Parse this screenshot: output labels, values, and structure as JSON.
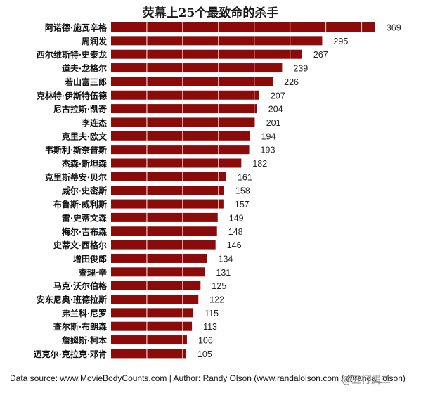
{
  "chart_data": {
    "type": "bar",
    "orientation": "horizontal",
    "title": "荧幕上25个最致命的杀手",
    "xlabel": "",
    "ylabel": "",
    "xlim": [
      0,
      380
    ],
    "grid": true,
    "bar_color": "#8b0a0a",
    "categories": [
      "阿诺德·施瓦辛格",
      "周润发",
      "西尔维斯特·史泰龙",
      "道夫·龙格尔",
      "若山富三郎",
      "克林特·伊斯特伍德",
      "尼古拉斯·凯奇",
      "李连杰",
      "克里夫·欧文",
      "韦斯利·斯奈普斯",
      "杰森·斯坦森",
      "克里斯蒂安·贝尔",
      "威尔·史密斯",
      "布鲁斯·威利斯",
      "雷·史蒂文森",
      "梅尔·吉布森",
      "史蒂文·西格尔",
      "增田俊郎",
      "查理·辛",
      "马克·沃尔伯格",
      "安东尼奥·班德拉斯",
      "弗兰科·尼罗",
      "查尔斯·布朗森",
      "詹姆斯·柯本",
      "迈克尔·克拉克·邓肯"
    ],
    "values": [
      369,
      295,
      267,
      239,
      226,
      207,
      204,
      201,
      194,
      193,
      182,
      161,
      158,
      157,
      149,
      148,
      146,
      134,
      131,
      125,
      122,
      115,
      113,
      106,
      105
    ]
  },
  "footer": {
    "source": "Data source: www.MovieBodyCounts.com | Author: Randy Olson (www.randalolson.com / @randal_olson)",
    "watermark": "@五行属二"
  }
}
